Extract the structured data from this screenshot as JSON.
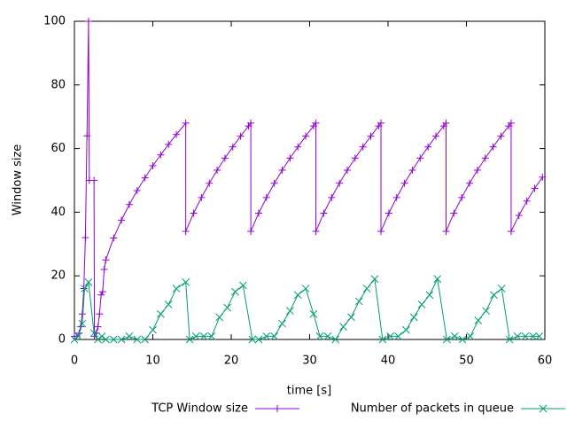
{
  "chart_data": {
    "type": "line",
    "xlabel": "time [s]",
    "ylabel": "Window size",
    "xlim": [
      0,
      60
    ],
    "xticks": [
      0,
      10,
      20,
      30,
      40,
      50,
      60
    ],
    "ylim": [
      0,
      100
    ],
    "yticks": [
      0,
      20,
      40,
      60,
      80,
      100
    ],
    "series": [
      {
        "name": "TCP Window size",
        "color": "#9400d3",
        "marker": "plus",
        "x": [
          0,
          0.3,
          0.6,
          0.8,
          1.0,
          1.2,
          1.4,
          1.6,
          1.8,
          1.9,
          2.5,
          2.55,
          2.8,
          3.0,
          3.2,
          3.4,
          3.6,
          3.8,
          4,
          5,
          6,
          7,
          8,
          9,
          10,
          11,
          12,
          13,
          14.2,
          14.2,
          15.2,
          16.2,
          17.2,
          18.2,
          19.2,
          20.2,
          21.2,
          22.2,
          22.5,
          22.5,
          23.5,
          24.5,
          25.5,
          26.5,
          27.5,
          28.5,
          29.5,
          30.5,
          30.8,
          30.8,
          31.8,
          32.8,
          33.8,
          34.8,
          35.8,
          36.8,
          37.8,
          38.8,
          39.1,
          39.1,
          40.1,
          41.1,
          42.1,
          43.1,
          44.1,
          45.1,
          46.1,
          47.1,
          47.4,
          47.4,
          48.4,
          49.4,
          50.4,
          51.4,
          52.4,
          53.4,
          54.4,
          55.4,
          55.7,
          55.7,
          56.7,
          57.7,
          58.7,
          59.7
        ],
        "values": [
          1,
          1,
          2,
          4,
          8,
          16,
          32,
          64,
          100,
          50,
          50,
          1,
          2,
          4,
          8,
          14,
          15,
          22,
          25,
          31.9,
          37.5,
          42.4,
          46.8,
          50.8,
          54.6,
          58,
          61.3,
          64.4,
          68,
          34,
          39.7,
          44.6,
          49.1,
          53.2,
          57,
          60.5,
          63.9,
          67.1,
          68,
          34,
          39.7,
          44.6,
          49.1,
          53.2,
          57,
          60.5,
          63.9,
          67.1,
          68,
          34,
          39.7,
          44.6,
          49.1,
          53.2,
          57,
          60.5,
          63.9,
          67.1,
          68,
          34,
          39.7,
          44.6,
          49.1,
          53.2,
          57,
          60.5,
          63.9,
          67.1,
          68,
          34,
          39.7,
          44.6,
          49.1,
          53.2,
          57,
          60.5,
          63.9,
          67.1,
          68,
          34,
          39,
          43.5,
          47.5,
          51
        ]
      },
      {
        "name": "Number of packets in queue",
        "color": "#009e73",
        "marker": "cross",
        "x": [
          0,
          0.5,
          1,
          1.3,
          1.8,
          2.5,
          3,
          3.5,
          4,
          5,
          6,
          7,
          8,
          9,
          10,
          11,
          12,
          13,
          14.2,
          14.7,
          15.5,
          16.5,
          17.5,
          18.5,
          19.5,
          20.5,
          21.5,
          22.7,
          23.5,
          24.5,
          25.5,
          26.5,
          27.5,
          28.5,
          29.5,
          30.5,
          31.3,
          32.3,
          33.3,
          34.3,
          35.3,
          36.3,
          37.3,
          38.3,
          39.3,
          40.3,
          41.3,
          42.3,
          43.3,
          44.3,
          45.3,
          46.3,
          47.5,
          48.5,
          49.5,
          50.5,
          51.5,
          52.5,
          53.5,
          54.5,
          55.5,
          56.5,
          57.5,
          58.5,
          59.3
        ],
        "values": [
          0,
          1,
          5,
          16,
          18,
          2,
          0,
          1,
          0,
          0,
          0,
          1,
          0,
          0,
          3,
          8,
          11,
          16,
          18,
          0,
          1,
          1,
          1,
          7,
          10,
          15,
          17,
          0,
          0,
          1,
          1,
          5,
          9,
          14,
          16,
          8,
          1,
          1,
          0,
          4,
          7,
          12,
          16,
          19,
          0,
          1,
          1,
          3,
          7,
          11,
          14,
          19,
          0,
          1,
          0,
          1,
          6,
          9,
          14,
          16,
          0,
          1,
          1,
          1,
          1
        ]
      }
    ]
  }
}
